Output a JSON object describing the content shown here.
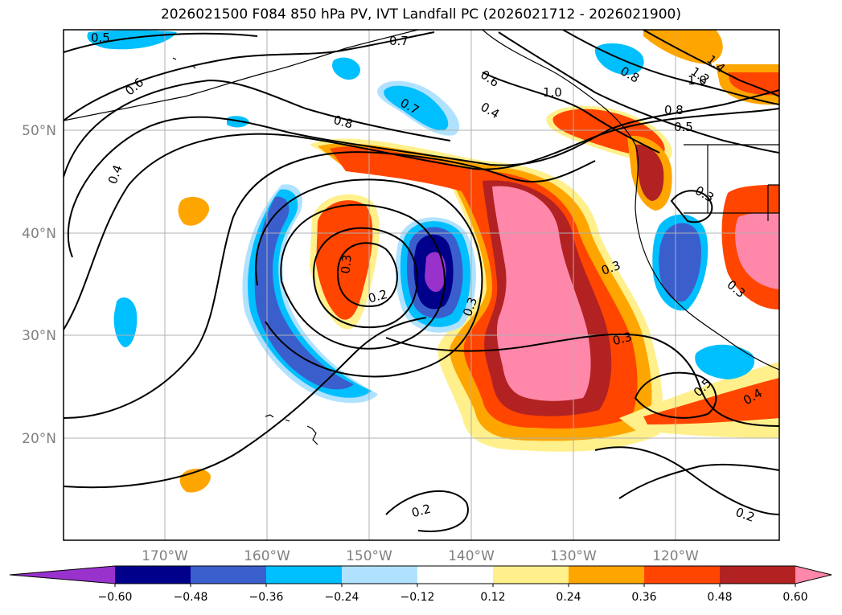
{
  "title": "2026021500 F084 850 hPa PV, IVT Landfall PC (2026021712 - 2026021900)",
  "longitudes": [
    "170°W",
    "160°W",
    "150°W",
    "140°W",
    "130°W",
    "120°W"
  ],
  "latitudes": [
    "50°N",
    "40°N",
    "30°N",
    "20°N"
  ],
  "colorbar": {
    "ticks": [
      "−0.60",
      "−0.48",
      "−0.36",
      "−0.24",
      "−0.12",
      "0.12",
      "0.24",
      "0.36",
      "0.48",
      "0.60"
    ],
    "colors": [
      "#9932cc",
      "#00008b",
      "#3a5fcd",
      "#00bfff",
      "#b0e2ff",
      "#ffffff",
      "#fff08c",
      "#ffa500",
      "#ff4500",
      "#b22222",
      "#ff88aa"
    ]
  },
  "contour_labels": [
    "0.5",
    "0.7",
    "0.6",
    "0.6",
    "0.4",
    "0.7",
    "0.8",
    "0.4",
    "1.0",
    "0.8",
    "0.5",
    "1.0",
    "1.2",
    "1.4",
    "0.8",
    "0.3",
    "0.3",
    "0.2",
    "0.3",
    "0.3",
    "0.3",
    "0.3",
    "0.5",
    "0.4",
    "0.2",
    "0.2"
  ]
}
